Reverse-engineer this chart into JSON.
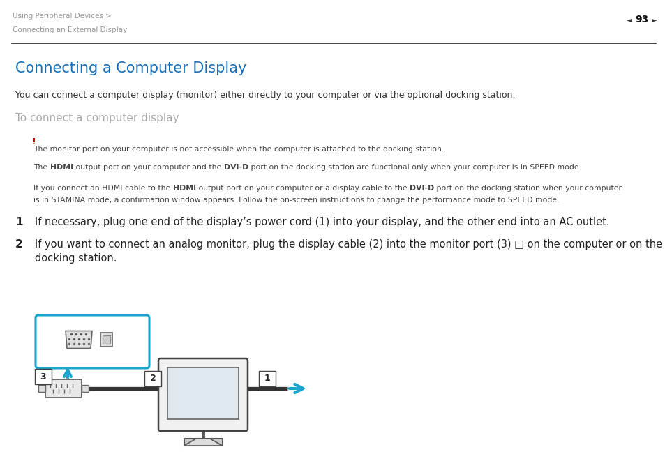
{
  "bg_color": "#ffffff",
  "header_text_line1": "Using Peripheral Devices >",
  "header_text_line2": "Connecting an External Display",
  "page_num": "93",
  "title": "Connecting a Computer Display",
  "title_color": "#1a6eb5",
  "subtitle": "To connect a computer display",
  "subtitle_color": "#aaaaaa",
  "intro": "You can connect a computer display (monitor) either directly to your computer or via the optional docking station.",
  "note_exclamation": "!",
  "note1": "The monitor port on your computer is not accessible when the computer is attached to the docking station.",
  "note2_pre": "The ",
  "note2_bold1": "HDMI",
  "note2_mid": " output port on your computer and the ",
  "note2_bold2": "DVI-D",
  "note2_post": " port on the docking station are functional only when your computer is in SPEED mode.",
  "note3_pre": "If you connect an HDMI cable to the ",
  "note3_bold1": "HDMI",
  "note3_mid": " output port on your computer or a display cable to the ",
  "note3_bold2": "DVI-D",
  "note3_post": " port on the docking station when your computer",
  "note3_line2": "is in STAMINA mode, a confirmation window appears. Follow the on-screen instructions to change the performance mode to SPEED mode.",
  "step1_num": "1",
  "step1_text": "If necessary, plug one end of the display’s power cord (1) into your display, and the other end into an AC outlet.",
  "step2_num": "2",
  "step2_line1": "If you want to connect an analog monitor, plug the display cable (2) into the monitor port (3) □ on the computer or on the",
  "step2_line2": "docking station.",
  "header_color": "#999999",
  "exclamation_color": "#cc0000",
  "text_color": "#333333",
  "note_color": "#444444",
  "step_color": "#222222",
  "cyan_color": "#1aa3cc",
  "line_color": "#333333"
}
